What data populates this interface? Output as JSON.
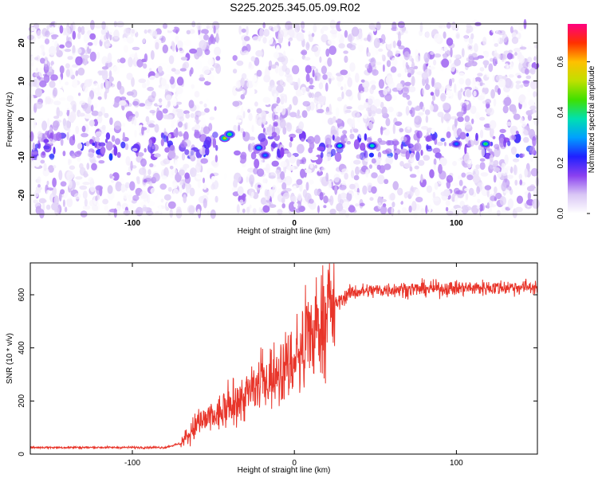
{
  "title": "S225.2025.345.05.09.R02",
  "chart_data": [
    {
      "type": "heatmap",
      "xlabel": "Height of straight line (km)",
      "ylabel": "Frequency (Hz)",
      "xlim": [
        -163,
        150
      ],
      "ylim": [
        -25,
        25
      ],
      "xticks": [
        -100,
        0,
        100
      ],
      "yticks": [
        -20,
        -10,
        0,
        10,
        20
      ],
      "colorbar": {
        "label": "Normalized spectral amplitude",
        "range": [
          0.0,
          0.75
        ],
        "ticks": [
          0.0,
          0.2,
          0.4,
          0.6
        ],
        "colors": [
          "#ffffff",
          "#d9c6f5",
          "#8a40f0",
          "#2020ff",
          "#00a0ff",
          "#00e0b0",
          "#40e000",
          "#c0e000",
          "#ffc000",
          "#ff3000",
          "#ff0080"
        ]
      },
      "features": {
        "signal_band_freq_hz": -7,
        "gap_near_km": -42,
        "hotspots": [
          {
            "x": -43,
            "y": -5,
            "amp": 0.45
          },
          {
            "x": -40,
            "y": -4,
            "amp": 0.35
          },
          {
            "x": -22,
            "y": -7.5,
            "amp": 0.25
          },
          {
            "x": -18,
            "y": -9.5,
            "amp": 0.2
          },
          {
            "x": 28,
            "y": -7,
            "amp": 0.28
          },
          {
            "x": 48,
            "y": -7,
            "amp": 0.3
          },
          {
            "x": 100,
            "y": -6.5,
            "amp": 0.2
          },
          {
            "x": 118,
            "y": -6.5,
            "amp": 0.35
          }
        ]
      }
    },
    {
      "type": "line",
      "xlabel": "Height of straight line (km)",
      "ylabel": "SNR (10 * v/v)",
      "xlim": [
        -163,
        150
      ],
      "ylim": [
        0,
        720
      ],
      "xticks": [
        -100,
        0,
        100
      ],
      "yticks": [
        0,
        200,
        400,
        600
      ],
      "color": "#e8352a",
      "profile": [
        {
          "x": -163,
          "y": 25
        },
        {
          "x": -80,
          "y": 25
        },
        {
          "x": -70,
          "y": 40
        },
        {
          "x": -60,
          "y": 110
        },
        {
          "x": -40,
          "y": 170
        },
        {
          "x": -20,
          "y": 270
        },
        {
          "x": 0,
          "y": 350
        },
        {
          "x": 10,
          "y": 430
        },
        {
          "x": 20,
          "y": 540
        },
        {
          "x": 35,
          "y": 610
        },
        {
          "x": 60,
          "y": 620
        },
        {
          "x": 150,
          "y": 630
        }
      ]
    }
  ]
}
